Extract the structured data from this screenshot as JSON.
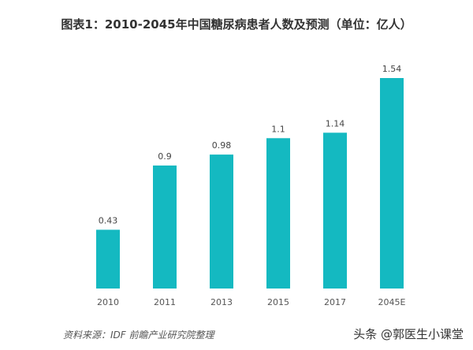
{
  "chart_data": {
    "type": "bar",
    "title": "图表1：2010-2045年中国糖尿病患者人数及预测（单位：亿人）",
    "categories": [
      "2010",
      "2011",
      "2013",
      "2015",
      "2017",
      "2045E"
    ],
    "values": [
      0.43,
      0.9,
      0.98,
      1.1,
      1.14,
      1.54
    ],
    "data_labels": [
      "0.43",
      "0.9",
      "0.98",
      "1.1",
      "1.14",
      "1.54"
    ],
    "xlabel": "",
    "ylabel": "",
    "ylim": [
      0,
      1.54
    ],
    "grid": false,
    "bar_color": "#14b9c1"
  },
  "source": "资料来源：IDF 前瞻产业研究院整理",
  "watermark": "头条 @郭医生小课堂"
}
